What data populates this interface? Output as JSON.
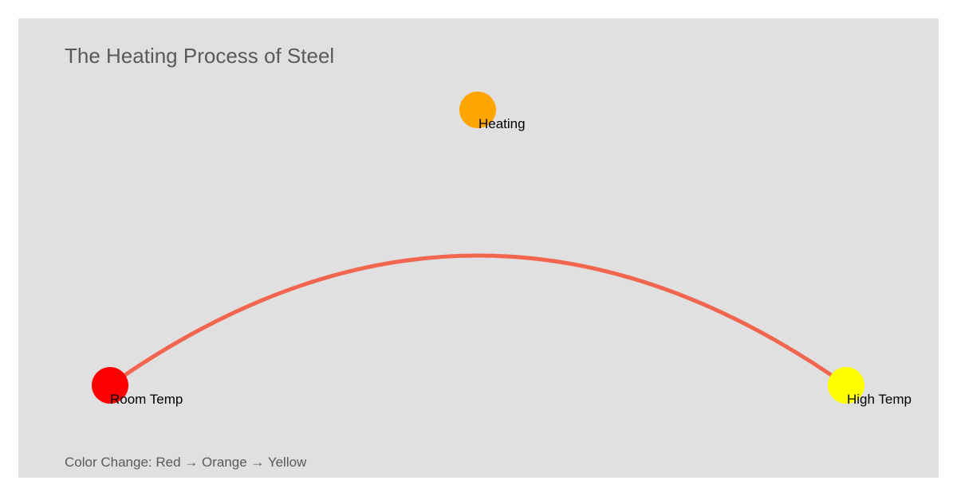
{
  "diagram": {
    "title": "The Heating Process of Steel",
    "caption": "Color Change: Red → Orange → Yellow",
    "arc_color": "#f26650",
    "nodes": [
      {
        "id": "room-temp",
        "label": "Room Temp",
        "color": "#ff0000"
      },
      {
        "id": "heating",
        "label": "Heating",
        "color": "#ffa500"
      },
      {
        "id": "high-temp",
        "label": "High Temp",
        "color": "#ffff00"
      }
    ]
  }
}
